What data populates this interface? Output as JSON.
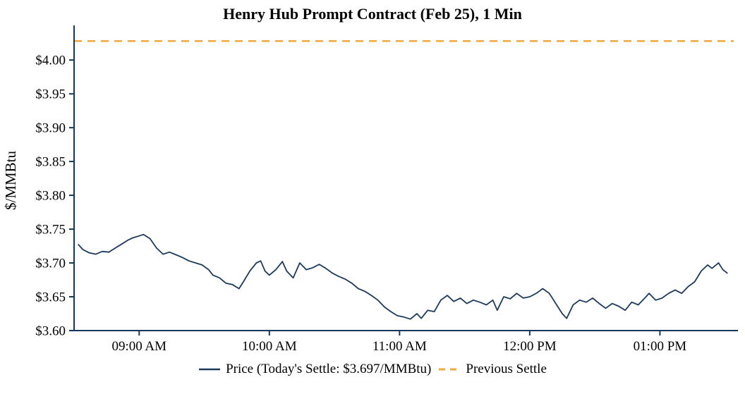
{
  "chart_data": {
    "type": "line",
    "title": "Henry Hub Prompt Contract (Feb 25), 1 Min",
    "xlabel": "",
    "ylabel": "$/MMBtu",
    "ylim": [
      3.6,
      4.045
    ],
    "x_start": "08:30",
    "x_end": "13:34",
    "grid": false,
    "legend_position": "bottom",
    "y_ticks": [
      {
        "value": 3.6,
        "label": "$3.60"
      },
      {
        "value": 3.65,
        "label": "$3.65"
      },
      {
        "value": 3.7,
        "label": "$3.70"
      },
      {
        "value": 3.75,
        "label": "$3.75"
      },
      {
        "value": 3.8,
        "label": "$3.80"
      },
      {
        "value": 3.85,
        "label": "$3.85"
      },
      {
        "value": 3.9,
        "label": "$3.90"
      },
      {
        "value": 3.95,
        "label": "$3.95"
      },
      {
        "value": 4.0,
        "label": "$4.00"
      }
    ],
    "x_ticks": [
      {
        "time": "09:00",
        "label": "09:00 AM"
      },
      {
        "time": "10:00",
        "label": "10:00 AM"
      },
      {
        "time": "11:00",
        "label": "11:00 AM"
      },
      {
        "time": "12:00",
        "label": "12:00 PM"
      },
      {
        "time": "13:00",
        "label": "01:00 PM"
      }
    ],
    "previous_settle": {
      "value": 4.028,
      "label": "Previous Settle",
      "color": "#F2A93B",
      "style": "dashed"
    },
    "series": [
      {
        "name": "Price",
        "legend_label": "Price (Today's Settle: $3.697/MMBtu)",
        "today_settle": 3.697,
        "color": "#1C3A5E",
        "points": [
          [
            "08:32",
            3.727
          ],
          [
            "08:34",
            3.72
          ],
          [
            "08:37",
            3.715
          ],
          [
            "08:40",
            3.713
          ],
          [
            "08:43",
            3.717
          ],
          [
            "08:46",
            3.716
          ],
          [
            "08:49",
            3.722
          ],
          [
            "08:52",
            3.728
          ],
          [
            "08:55",
            3.734
          ],
          [
            "08:57",
            3.737
          ],
          [
            "09:00",
            3.74
          ],
          [
            "09:02",
            3.742
          ],
          [
            "09:05",
            3.736
          ],
          [
            "09:08",
            3.722
          ],
          [
            "09:11",
            3.713
          ],
          [
            "09:14",
            3.716
          ],
          [
            "09:17",
            3.712
          ],
          [
            "09:20",
            3.708
          ],
          [
            "09:23",
            3.703
          ],
          [
            "09:26",
            3.7
          ],
          [
            "09:29",
            3.697
          ],
          [
            "09:32",
            3.69
          ],
          [
            "09:34",
            3.682
          ],
          [
            "09:37",
            3.678
          ],
          [
            "09:40",
            3.67
          ],
          [
            "09:43",
            3.668
          ],
          [
            "09:46",
            3.662
          ],
          [
            "09:48",
            3.672
          ],
          [
            "09:51",
            3.688
          ],
          [
            "09:54",
            3.7
          ],
          [
            "09:56",
            3.703
          ],
          [
            "09:58",
            3.688
          ],
          [
            "10:00",
            3.682
          ],
          [
            "10:03",
            3.69
          ],
          [
            "10:06",
            3.702
          ],
          [
            "10:08",
            3.688
          ],
          [
            "10:11",
            3.678
          ],
          [
            "10:14",
            3.7
          ],
          [
            "10:17",
            3.69
          ],
          [
            "10:20",
            3.693
          ],
          [
            "10:23",
            3.698
          ],
          [
            "10:26",
            3.692
          ],
          [
            "10:29",
            3.685
          ],
          [
            "10:32",
            3.68
          ],
          [
            "10:35",
            3.676
          ],
          [
            "10:38",
            3.67
          ],
          [
            "10:41",
            3.662
          ],
          [
            "10:44",
            3.658
          ],
          [
            "10:47",
            3.652
          ],
          [
            "10:50",
            3.645
          ],
          [
            "10:53",
            3.635
          ],
          [
            "10:56",
            3.628
          ],
          [
            "10:59",
            3.622
          ],
          [
            "11:02",
            3.62
          ],
          [
            "11:05",
            3.617
          ],
          [
            "11:08",
            3.625
          ],
          [
            "11:10",
            3.618
          ],
          [
            "11:13",
            3.63
          ],
          [
            "11:16",
            3.628
          ],
          [
            "11:19",
            3.645
          ],
          [
            "11:22",
            3.652
          ],
          [
            "11:25",
            3.643
          ],
          [
            "11:28",
            3.648
          ],
          [
            "11:31",
            3.64
          ],
          [
            "11:34",
            3.645
          ],
          [
            "11:37",
            3.642
          ],
          [
            "11:40",
            3.638
          ],
          [
            "11:43",
            3.645
          ],
          [
            "11:45",
            3.63
          ],
          [
            "11:48",
            3.65
          ],
          [
            "11:51",
            3.647
          ],
          [
            "11:54",
            3.655
          ],
          [
            "11:57",
            3.648
          ],
          [
            "12:00",
            3.65
          ],
          [
            "12:03",
            3.655
          ],
          [
            "12:06",
            3.662
          ],
          [
            "12:09",
            3.655
          ],
          [
            "12:12",
            3.64
          ],
          [
            "12:15",
            3.625
          ],
          [
            "12:17",
            3.618
          ],
          [
            "12:20",
            3.638
          ],
          [
            "12:23",
            3.645
          ],
          [
            "12:26",
            3.642
          ],
          [
            "12:29",
            3.648
          ],
          [
            "12:32",
            3.64
          ],
          [
            "12:35",
            3.633
          ],
          [
            "12:38",
            3.64
          ],
          [
            "12:41",
            3.636
          ],
          [
            "12:44",
            3.63
          ],
          [
            "12:47",
            3.642
          ],
          [
            "12:50",
            3.638
          ],
          [
            "12:53",
            3.648
          ],
          [
            "12:55",
            3.655
          ],
          [
            "12:58",
            3.645
          ],
          [
            "13:01",
            3.648
          ],
          [
            "13:04",
            3.655
          ],
          [
            "13:07",
            3.66
          ],
          [
            "13:10",
            3.655
          ],
          [
            "13:13",
            3.665
          ],
          [
            "13:16",
            3.672
          ],
          [
            "13:19",
            3.688
          ],
          [
            "13:22",
            3.697
          ],
          [
            "13:24",
            3.692
          ],
          [
            "13:27",
            3.7
          ],
          [
            "13:29",
            3.69
          ],
          [
            "13:31",
            3.685
          ]
        ]
      }
    ]
  },
  "axis_color": "#16365C",
  "text_color": "#000000"
}
